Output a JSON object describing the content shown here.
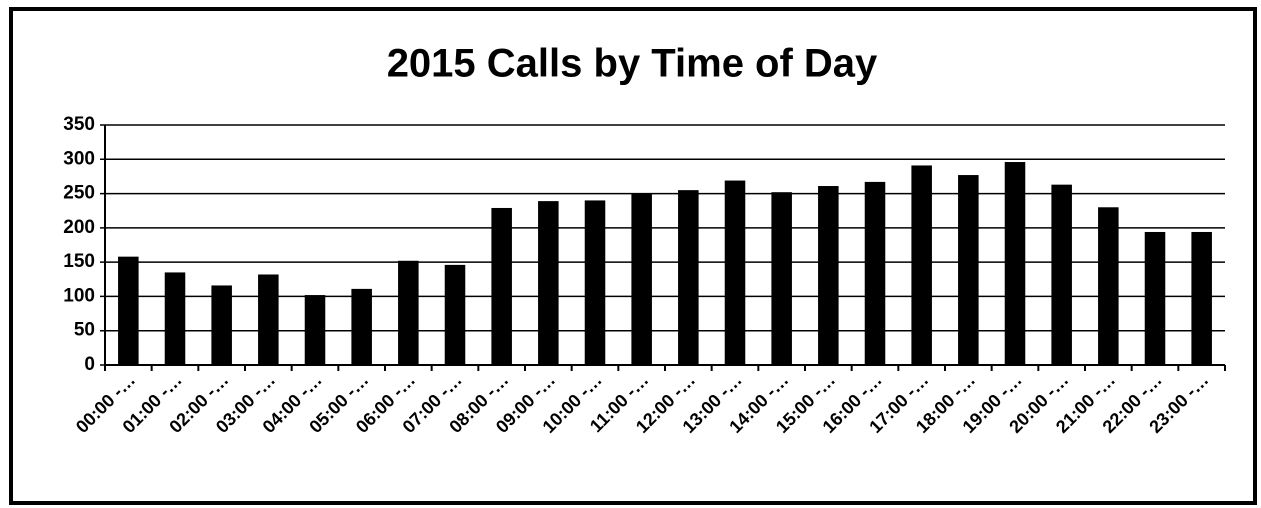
{
  "chart_data": {
    "type": "bar",
    "title": "2015 Calls by Time of Day",
    "categories": [
      "00:00 -…",
      "01:00 -…",
      "02:00 -…",
      "03:00 -…",
      "04:00 -…",
      "05:00 -…",
      "06:00 -…",
      "07:00 -…",
      "08:00 -…",
      "09:00 -…",
      "10:00 -…",
      "11:00 -…",
      "12:00 -…",
      "13:00 -…",
      "14:00 -…",
      "15:00 -…",
      "16:00 -…",
      "17:00 -…",
      "18:00 -…",
      "19:00 -…",
      "20:00 -…",
      "21:00 -…",
      "22:00 -…",
      "23:00 -…"
    ],
    "values": [
      158,
      135,
      116,
      132,
      102,
      111,
      152,
      146,
      229,
      239,
      240,
      250,
      255,
      269,
      252,
      261,
      267,
      291,
      277,
      296,
      263,
      230,
      194,
      194
    ],
    "color": "#000000",
    "ylim": [
      0,
      350
    ],
    "yticks": [
      0,
      50,
      100,
      150,
      200,
      250,
      300,
      350
    ],
    "grid": true
  }
}
